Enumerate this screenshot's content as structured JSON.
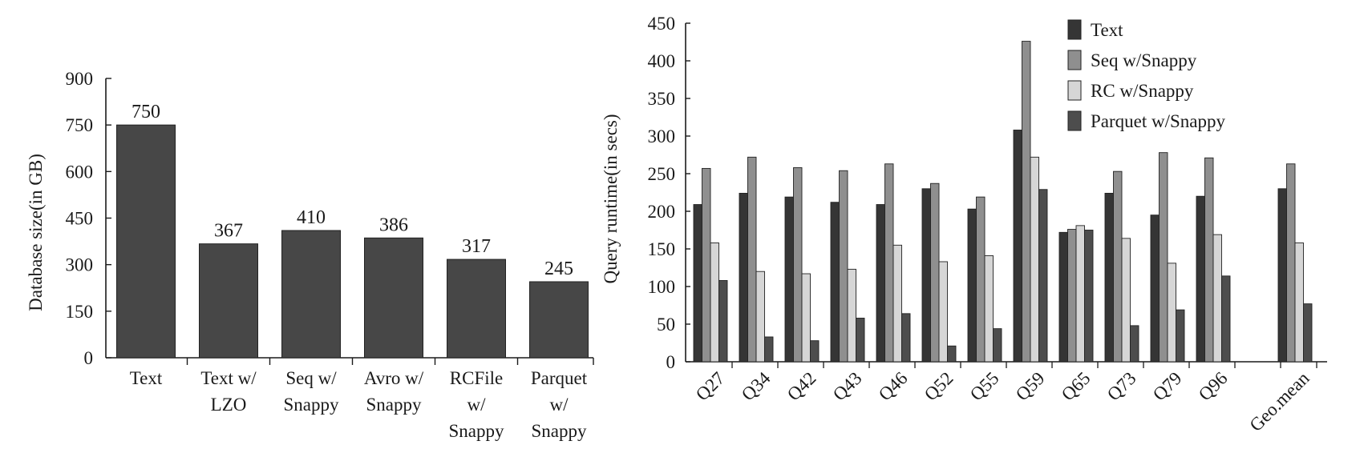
{
  "chart_data": [
    {
      "type": "bar",
      "title": "",
      "xlabel": "",
      "ylabel": "Database size(in GB)",
      "ylim": [
        0,
        900
      ],
      "yticks": [
        0,
        150,
        300,
        450,
        600,
        750,
        900
      ],
      "grid": false,
      "categories": [
        [
          "Text"
        ],
        [
          "Text w/",
          "LZO"
        ],
        [
          "Seq w/",
          "Snappy"
        ],
        [
          "Avro w/",
          "Snappy"
        ],
        [
          "RCFile",
          "w/",
          "Snappy"
        ],
        [
          "Parquet",
          "w/",
          "Snappy"
        ]
      ],
      "values": [
        750,
        367,
        410,
        386,
        317,
        245
      ],
      "data_labels": [
        "750",
        "367",
        "410",
        "386",
        "317",
        "245"
      ],
      "colors": {
        "bar": "#474747"
      }
    },
    {
      "type": "bar",
      "title": "",
      "xlabel": "",
      "ylabel": "Query runtime(in secs)",
      "ylim": [
        0,
        450
      ],
      "yticks": [
        0,
        50,
        100,
        150,
        200,
        250,
        300,
        350,
        400,
        450
      ],
      "grid": false,
      "legend": "top-right",
      "categories": [
        "Q27",
        "Q34",
        "Q42",
        "Q43",
        "Q46",
        "Q52",
        "Q55",
        "Q59",
        "Q65",
        "Q73",
        "Q79",
        "Q96",
        "Geo.mean"
      ],
      "series": [
        {
          "name": "Text",
          "color": "#353535",
          "values": [
            209,
            224,
            219,
            212,
            209,
            230,
            203,
            308,
            172,
            224,
            195,
            220,
            230
          ]
        },
        {
          "name": "Seq w/Snappy",
          "color": "#8f8f8f",
          "values": [
            257,
            272,
            258,
            254,
            263,
            237,
            219,
            426,
            176,
            253,
            278,
            271,
            263
          ]
        },
        {
          "name": "RC w/Snappy",
          "color": "#d6d6d6",
          "values": [
            158,
            120,
            117,
            123,
            155,
            133,
            141,
            272,
            181,
            164,
            131,
            169,
            158
          ]
        },
        {
          "name": "Parquet w/Snappy",
          "color": "#4d4d4d",
          "values": [
            108,
            33,
            28,
            58,
            64,
            21,
            44,
            229,
            175,
            48,
            69,
            114,
            77
          ]
        }
      ]
    }
  ]
}
